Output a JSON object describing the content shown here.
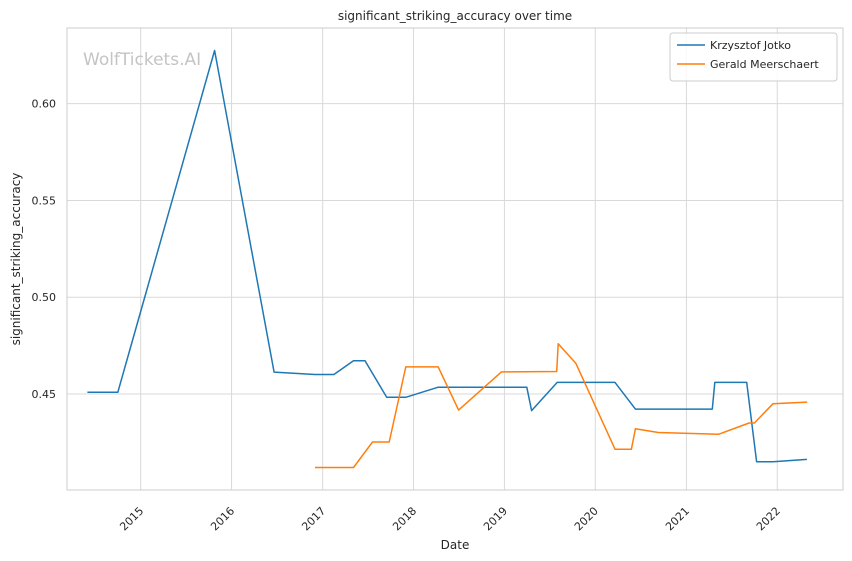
{
  "chart_data": {
    "type": "line",
    "title": "significant_striking_accuracy over time",
    "xlabel": "Date",
    "ylabel": "significant_striking_accuracy",
    "watermark": "WolfTickets.AI",
    "x_ticks": [
      "2015",
      "2016",
      "2017",
      "2018",
      "2019",
      "2020",
      "2021",
      "2022"
    ],
    "y_ticks": [
      "0.45",
      "0.50",
      "0.55",
      "0.60"
    ],
    "xlim": [
      "2014-03-11",
      "2022-09-22"
    ],
    "ylim": [
      0.4004,
      0.6391
    ],
    "grid": true,
    "legend_position": "top-right",
    "series": [
      {
        "name": "Krzysztof Jotko",
        "color": "#1f77b4",
        "points": [
          [
            "2014-06-01",
            0.4509
          ],
          [
            "2014-10-01",
            0.4509
          ],
          [
            "2015-10-25",
            0.6275
          ],
          [
            "2016-06-20",
            0.4613
          ],
          [
            "2016-12-01",
            0.4601
          ],
          [
            "2017-02-15",
            0.4601
          ],
          [
            "2017-05-05",
            0.4672
          ],
          [
            "2017-06-20",
            0.4672
          ],
          [
            "2017-09-15",
            0.4483
          ],
          [
            "2017-12-01",
            0.4483
          ],
          [
            "2018-04-10",
            0.4535
          ],
          [
            "2019-04-01",
            0.4535
          ],
          [
            "2019-04-20",
            0.4414
          ],
          [
            "2019-08-01",
            0.456
          ],
          [
            "2020-03-20",
            0.456
          ],
          [
            "2020-06-10",
            0.4422
          ],
          [
            "2021-04-15",
            0.4422
          ],
          [
            "2021-04-25",
            0.456
          ],
          [
            "2021-08-31",
            0.456
          ],
          [
            "2021-10-10",
            0.415
          ],
          [
            "2021-12-15",
            0.415
          ],
          [
            "2022-04-30",
            0.4162
          ]
        ]
      },
      {
        "name": "Gerald Meerschaert",
        "color": "#ff7f0e",
        "points": [
          [
            "2016-12-01",
            0.412
          ],
          [
            "2017-05-05",
            0.412
          ],
          [
            "2017-07-20",
            0.4252
          ],
          [
            "2017-09-25",
            0.4252
          ],
          [
            "2017-12-01",
            0.464
          ],
          [
            "2018-04-10",
            0.464
          ],
          [
            "2018-07-01",
            0.4417
          ],
          [
            "2018-12-20",
            0.4614
          ],
          [
            "2019-07-30",
            0.4616
          ],
          [
            "2019-08-05",
            0.476
          ],
          [
            "2019-10-15",
            0.4658
          ],
          [
            "2020-03-20",
            0.4215
          ],
          [
            "2020-05-25",
            0.4215
          ],
          [
            "2020-06-10",
            0.432
          ],
          [
            "2020-09-10",
            0.4301
          ],
          [
            "2021-05-10",
            0.4292
          ],
          [
            "2021-09-10",
            0.435
          ],
          [
            "2021-10-01",
            0.435
          ],
          [
            "2021-12-15",
            0.445
          ],
          [
            "2022-05-01",
            0.4458
          ]
        ]
      }
    ]
  }
}
